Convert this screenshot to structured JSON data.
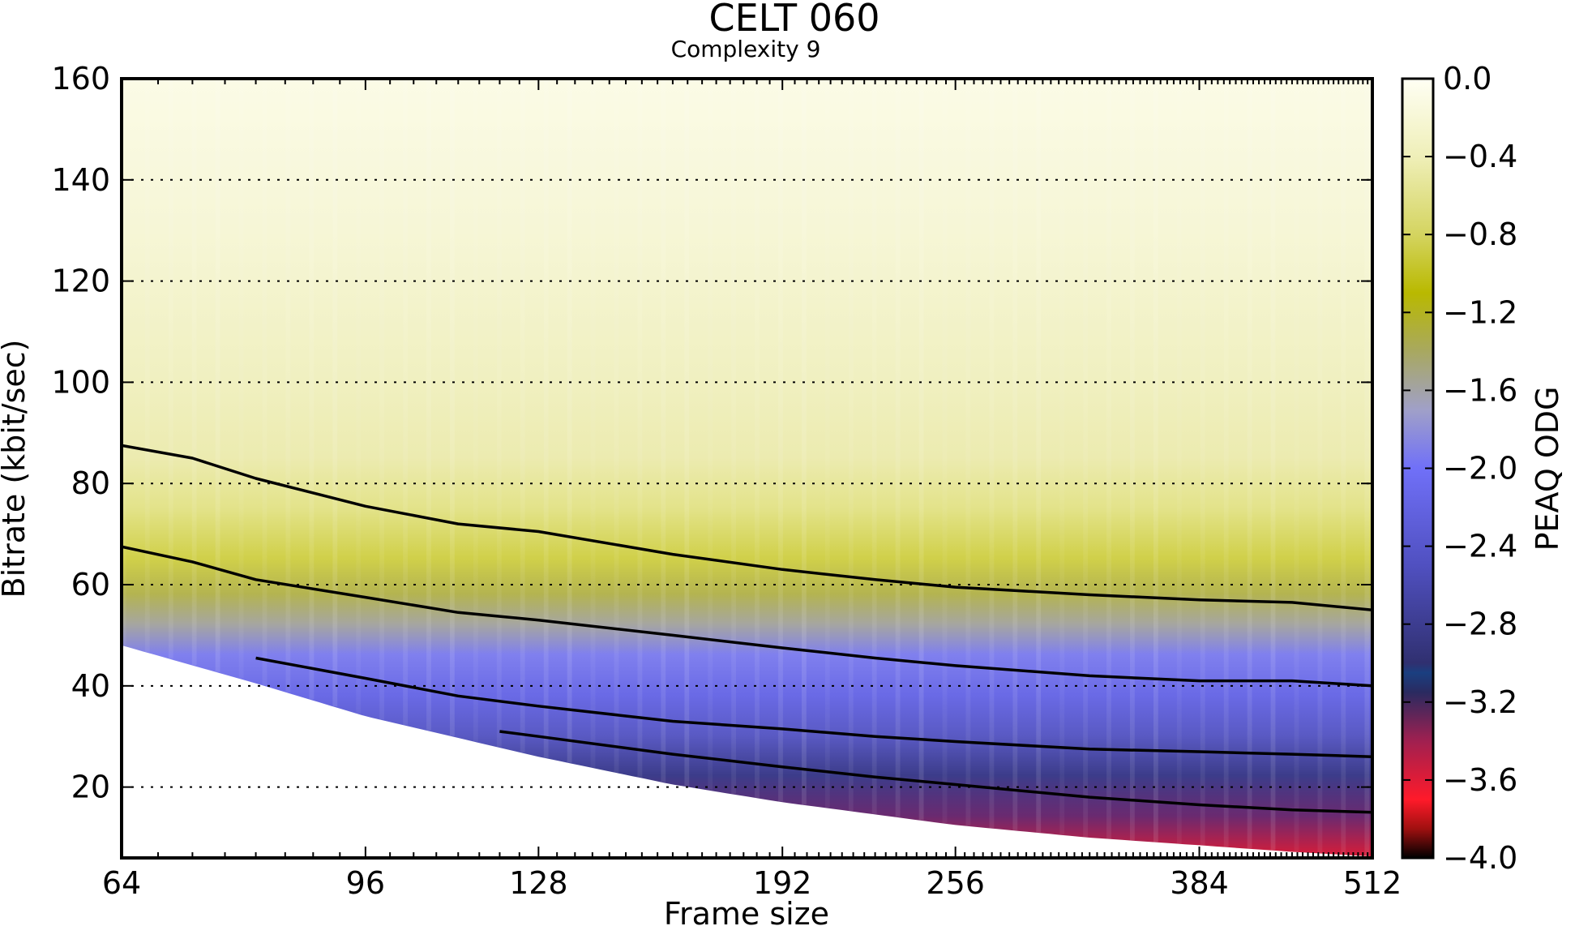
{
  "chart_data": {
    "type": "heatmap",
    "title": "CELT 060",
    "subtitle": "Complexity 9",
    "xlabel": "Frame size",
    "ylabel": "Bitrate (kbit/sec)",
    "x_scale": "log2",
    "xlim": [
      64,
      512
    ],
    "ylim": [
      6,
      160
    ],
    "x_ticks": [
      64,
      96,
      128,
      192,
      256,
      384,
      512
    ],
    "x_tick_labels": [
      "64",
      "96",
      "128",
      "192",
      "256",
      "384",
      "512"
    ],
    "y_ticks": [
      20,
      40,
      60,
      80,
      100,
      120,
      140,
      160
    ],
    "y_tick_labels": [
      "20",
      "40",
      "60",
      "80",
      "100",
      "120",
      "140",
      "160"
    ],
    "grid": {
      "y": true,
      "x": false,
      "style": "dotted"
    },
    "colorbar": {
      "label": "PEAQ ODG",
      "range": [
        -4.0,
        0.0
      ],
      "ticks": [
        0.0,
        -0.4,
        -0.8,
        -1.2,
        -1.6,
        -2.0,
        -2.4,
        -2.8,
        -3.2,
        -3.6,
        -4.0
      ],
      "tick_labels": [
        "0.0",
        "−0.4",
        "−0.8",
        "−1.2",
        "−1.6",
        "−2.0",
        "−2.4",
        "−2.8",
        "−3.2",
        "−3.6",
        "−4.0"
      ],
      "colors": [
        {
          "v": 0.0,
          "c": "#fffff4"
        },
        {
          "v": -0.4,
          "c": "#efefb8"
        },
        {
          "v": -0.8,
          "c": "#d4d460"
        },
        {
          "v": -1.1,
          "c": "#b9b900"
        },
        {
          "v": -1.4,
          "c": "#a8a860"
        },
        {
          "v": -1.7,
          "c": "#a0a0c8"
        },
        {
          "v": -2.0,
          "c": "#7070f8"
        },
        {
          "v": -2.5,
          "c": "#5050c0"
        },
        {
          "v": -3.0,
          "c": "#303070"
        },
        {
          "v": -3.05,
          "c": "#1a3f80"
        },
        {
          "v": -3.15,
          "c": "#2a2a60"
        },
        {
          "v": -3.4,
          "c": "#a02050"
        },
        {
          "v": -3.7,
          "c": "#ff1a2a"
        },
        {
          "v": -3.85,
          "c": "#a01010"
        },
        {
          "v": -4.0,
          "c": "#000000"
        }
      ]
    },
    "contours": [
      {
        "level": -0.4,
        "points": [
          [
            64,
            87.5
          ],
          [
            72,
            85
          ],
          [
            80,
            81
          ],
          [
            96,
            75.5
          ],
          [
            112,
            72
          ],
          [
            128,
            70.5
          ],
          [
            160,
            66
          ],
          [
            192,
            63
          ],
          [
            224,
            61
          ],
          [
            256,
            59.5
          ],
          [
            320,
            58
          ],
          [
            384,
            57
          ],
          [
            448,
            56.5
          ],
          [
            512,
            55
          ]
        ]
      },
      {
        "level": -0.8,
        "points": [
          [
            64,
            67.5
          ],
          [
            72,
            64.5
          ],
          [
            80,
            61
          ],
          [
            96,
            57.5
          ],
          [
            112,
            54.5
          ],
          [
            128,
            53
          ],
          [
            160,
            50
          ],
          [
            192,
            47.5
          ],
          [
            224,
            45.5
          ],
          [
            256,
            44
          ],
          [
            320,
            42
          ],
          [
            384,
            41
          ],
          [
            448,
            41
          ],
          [
            512,
            40
          ]
        ]
      },
      {
        "level": -2.0,
        "points": [
          [
            80,
            45.5
          ],
          [
            96,
            41.5
          ],
          [
            112,
            38
          ],
          [
            128,
            36
          ],
          [
            160,
            33
          ],
          [
            192,
            31.5
          ],
          [
            224,
            30
          ],
          [
            256,
            29
          ],
          [
            320,
            27.5
          ],
          [
            384,
            27
          ],
          [
            448,
            26.5
          ],
          [
            512,
            26
          ]
        ]
      },
      {
        "level": -2.8,
        "points": [
          [
            120,
            31
          ],
          [
            128,
            30
          ],
          [
            160,
            26.5
          ],
          [
            192,
            24
          ],
          [
            224,
            22
          ],
          [
            256,
            20.5
          ],
          [
            320,
            18
          ],
          [
            384,
            16.5
          ],
          [
            448,
            15.5
          ],
          [
            512,
            15
          ]
        ]
      }
    ],
    "data_lower_bound": [
      [
        64,
        48
      ],
      [
        80,
        40.5
      ],
      [
        96,
        34
      ],
      [
        128,
        26
      ],
      [
        160,
        20.5
      ],
      [
        192,
        17
      ],
      [
        256,
        12.5
      ],
      [
        320,
        10
      ],
      [
        384,
        8.5
      ],
      [
        448,
        7.2
      ],
      [
        512,
        6.3
      ]
    ]
  }
}
